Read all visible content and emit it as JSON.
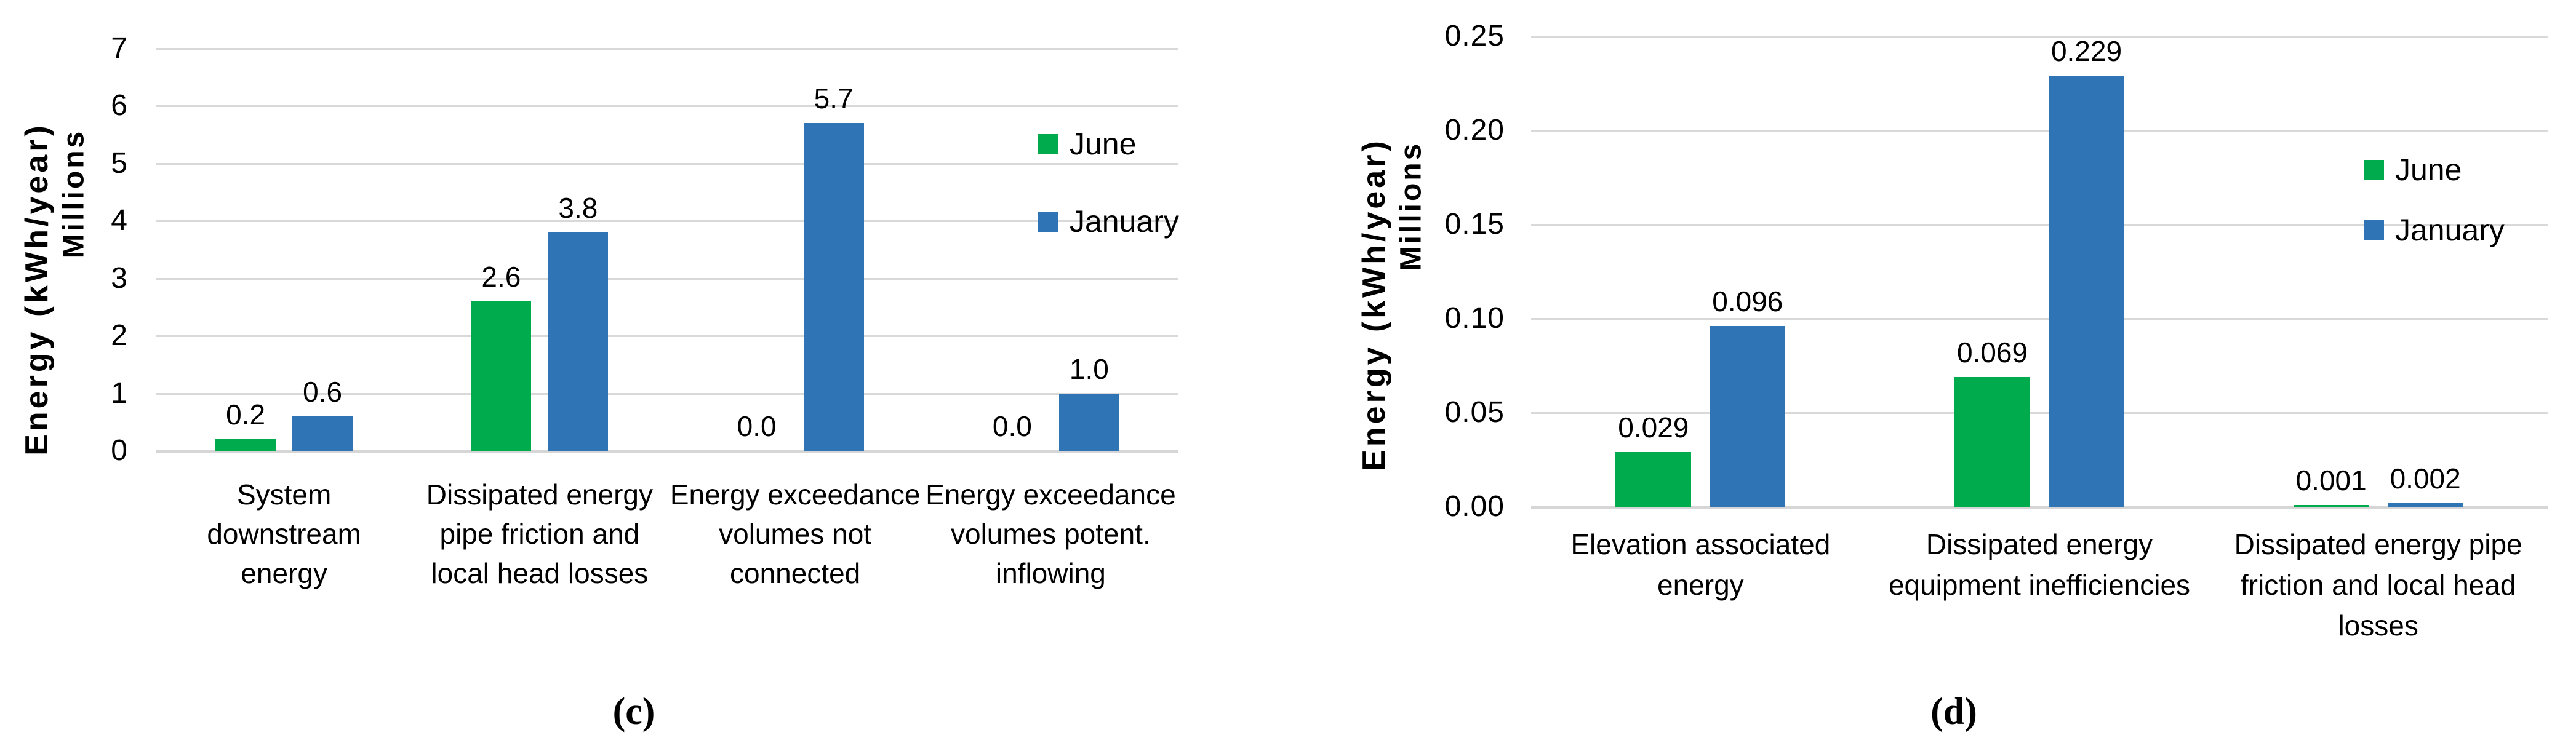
{
  "colors": {
    "june": "#00AB4E",
    "january": "#2F74B5",
    "gridline": "#D9D9D9",
    "axis_line": "#D6D6D6",
    "text": "#000000"
  },
  "chart_data": [
    {
      "type": "bar",
      "caption": "(c)",
      "y_axis_title": "Energy (kWh/year)",
      "y_axis_units": "Millions",
      "ylim": [
        0,
        7
      ],
      "y_ticks": [
        "0",
        "1",
        "2",
        "3",
        "4",
        "5",
        "6",
        "7"
      ],
      "grid": true,
      "legend_position": "inside-top-right",
      "categories": [
        "System downstream energy",
        "Dissipated energy pipe friction and local head losses",
        "Energy exceedance volumes not connected",
        "Energy exceedance volumes potent. inflowing"
      ],
      "category_lines": [
        [
          "System",
          "downstream",
          "energy"
        ],
        [
          "Dissipated energy",
          "pipe friction and",
          "local head losses"
        ],
        [
          "Energy exceedance",
          "volumes not",
          "connected"
        ],
        [
          "Energy exceedance",
          "volumes potent.",
          "inflowing"
        ]
      ],
      "series": [
        {
          "name": "June",
          "color": "#00AB4E",
          "values": [
            0.2,
            2.6,
            0.0,
            0.0
          ],
          "value_labels": [
            "0.2",
            "2.6",
            "0.0",
            "0.0"
          ]
        },
        {
          "name": "January",
          "color": "#2F74B5",
          "values": [
            0.6,
            3.8,
            5.7,
            1.0
          ],
          "value_labels": [
            "0.6",
            "3.8",
            "5.7",
            "1.0"
          ]
        }
      ]
    },
    {
      "type": "bar",
      "caption": "(d)",
      "y_axis_title": "Energy (kWh/year)",
      "y_axis_units": "Millions",
      "ylim": [
        0,
        0.25
      ],
      "y_ticks": [
        "0.00",
        "0.05",
        "0.10",
        "0.15",
        "0.20",
        "0.25"
      ],
      "grid": true,
      "legend_position": "inside-top-right",
      "categories": [
        "Elevation associated energy",
        "Dissipated energy equipment inefficiencies",
        "Dissipated energy pipe friction and local head losses"
      ],
      "category_lines": [
        [
          "Elevation associated",
          "energy"
        ],
        [
          "Dissipated energy",
          "equipment inefficiencies"
        ],
        [
          "Dissipated energy pipe",
          "friction and local head",
          "losses"
        ]
      ],
      "series": [
        {
          "name": "June",
          "color": "#00AB4E",
          "values": [
            0.029,
            0.069,
            0.001
          ],
          "value_labels": [
            "0.029",
            "0.069",
            "0.001"
          ]
        },
        {
          "name": "January",
          "color": "#2F74B5",
          "values": [
            0.096,
            0.229,
            0.002
          ],
          "value_labels": [
            "0.096",
            "0.229",
            "0.002"
          ]
        }
      ]
    }
  ]
}
